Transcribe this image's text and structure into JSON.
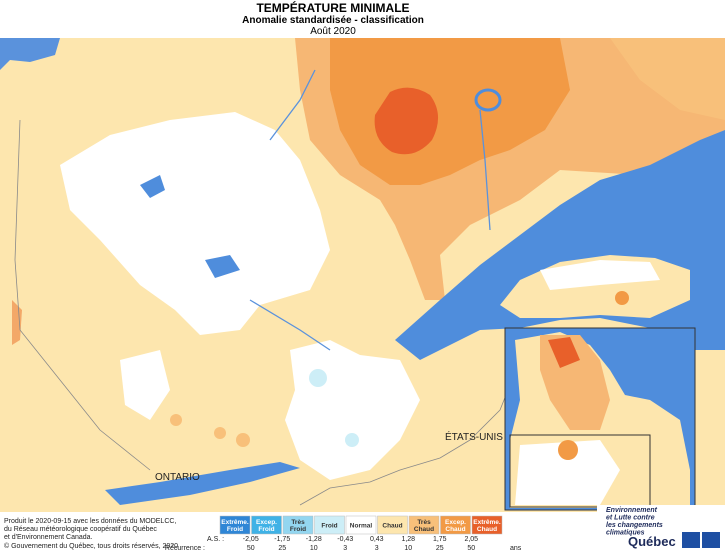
{
  "header": {
    "title": "TEMPÉRATURE MINIMALE",
    "subtitle": "Anomalie standardisée - classification",
    "period": "Août 2020"
  },
  "map_labels": {
    "usa": "ÉTATS-UNIS",
    "ontario": "ONTARIO"
  },
  "credits": [
    "Produit le 2020-09-15 avec les données du MODELCC,",
    "du Réseau météorologique coopératif du Québec",
    "et d'Environnement Canada.",
    "© Gouvernement du Québec, tous droits réservés, 2020"
  ],
  "legend": {
    "classes": [
      {
        "label": [
          "Extrême.",
          "Froid"
        ],
        "color": "#2f86d6"
      },
      {
        "label": [
          "Excep.",
          "Froid"
        ],
        "color": "#3fb2e6"
      },
      {
        "label": [
          "Très",
          "Froid"
        ],
        "color": "#93d6f0"
      },
      {
        "label": [
          "Froid"
        ],
        "color": "#cdeef7"
      },
      {
        "label": [
          "Normal"
        ],
        "color": "#ffffff"
      },
      {
        "label": [
          "Chaud"
        ],
        "color": "#fde6ae"
      },
      {
        "label": [
          "Très",
          "Chaud"
        ],
        "color": "#f8c07a"
      },
      {
        "label": [
          "Excep.",
          "Chaud"
        ],
        "color": "#f29a45"
      },
      {
        "label": [
          "Extrême.",
          "Chaud"
        ],
        "color": "#e8602a"
      }
    ],
    "as_label": "A.S. :",
    "thresholds": [
      "-2,05",
      "-1,75",
      "-1,28",
      "-0,43",
      "0,43",
      "1,28",
      "1,75",
      "2,05"
    ],
    "recurrence_label": "Récurrence :",
    "recurrence": [
      50,
      25,
      10,
      3,
      3,
      10,
      25,
      50
    ],
    "recurrence_unit": "ans"
  },
  "logo": {
    "ministry": [
      "Environnement",
      "et Lutte contre",
      "les changements",
      "climatiques"
    ],
    "name": "Québec"
  }
}
